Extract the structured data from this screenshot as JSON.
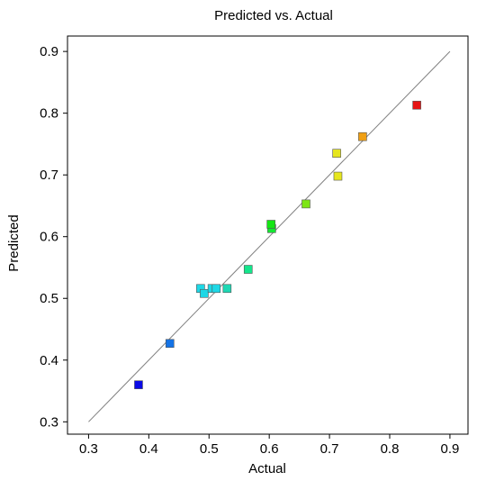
{
  "chart_data": {
    "type": "scatter",
    "title": "Predicted vs. Actual",
    "xlabel": "Actual",
    "ylabel": "Predicted",
    "xlim": [
      0.265,
      0.93
    ],
    "ylim": [
      0.28,
      0.925
    ],
    "xticks": [
      "0.3",
      "0.4",
      "0.5",
      "0.6",
      "0.7",
      "0.8",
      "0.9"
    ],
    "yticks": [
      "0.3",
      "0.4",
      "0.5",
      "0.6",
      "0.7",
      "0.8",
      "0.9"
    ],
    "reference_line": {
      "from": [
        0.3,
        0.3
      ],
      "to": [
        0.9,
        0.9
      ],
      "color": "#808080"
    },
    "grid": false,
    "points": [
      {
        "x": 0.383,
        "y": 0.36,
        "color": "#0a0ae6"
      },
      {
        "x": 0.435,
        "y": 0.427,
        "color": "#1473e6"
      },
      {
        "x": 0.486,
        "y": 0.516,
        "color": "#1ed8e6"
      },
      {
        "x": 0.492,
        "y": 0.508,
        "color": "#1ed8e6"
      },
      {
        "x": 0.505,
        "y": 0.516,
        "color": "#1ed8e6"
      },
      {
        "x": 0.512,
        "y": 0.516,
        "color": "#1ed8e6"
      },
      {
        "x": 0.53,
        "y": 0.516,
        "color": "#1ed8b4"
      },
      {
        "x": 0.565,
        "y": 0.547,
        "color": "#14e68c"
      },
      {
        "x": 0.604,
        "y": 0.613,
        "color": "#14e632"
      },
      {
        "x": 0.603,
        "y": 0.62,
        "color": "#14e614"
      },
      {
        "x": 0.661,
        "y": 0.653,
        "color": "#7de614"
      },
      {
        "x": 0.712,
        "y": 0.735,
        "color": "#e6e61e"
      },
      {
        "x": 0.714,
        "y": 0.698,
        "color": "#e6e61e"
      },
      {
        "x": 0.755,
        "y": 0.762,
        "color": "#f0a014"
      },
      {
        "x": 0.845,
        "y": 0.813,
        "color": "#e61414"
      }
    ]
  }
}
